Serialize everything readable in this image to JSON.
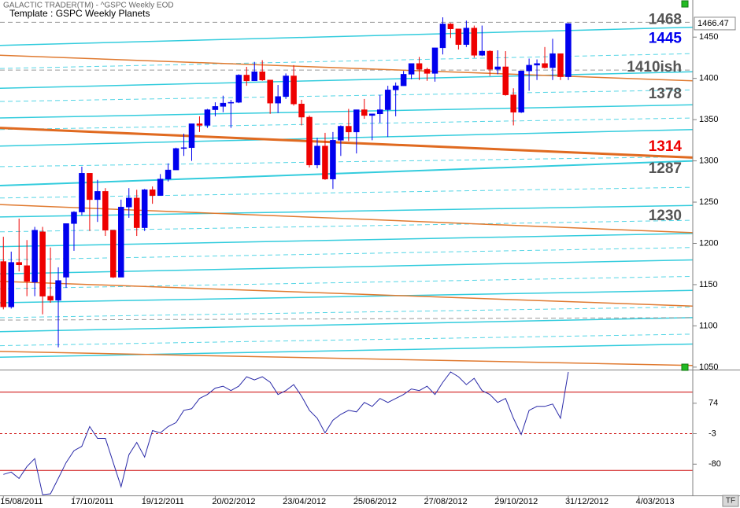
{
  "chart_data": [
    {
      "type": "candlestick",
      "title": "GALACTIC TRADER(TM) - ^GSPC Weekly EOD",
      "subtitle": "Template : GSPC Weekly Planets",
      "up_color": "#0000ee",
      "down_color": "#ee0000",
      "xlim": [
        "2011-08-12",
        "2013-04-21"
      ],
      "ylim": [
        1047,
        1495
      ],
      "yticks": [
        1050,
        1100,
        1150,
        1200,
        1250,
        1300,
        1350,
        1400,
        1450
      ],
      "x": [
        "2011-08-15",
        "2011-08-22",
        "2011-08-29",
        "2011-09-05",
        "2011-09-12",
        "2011-09-19",
        "2011-09-26",
        "2011-10-03",
        "2011-10-10",
        "2011-10-17",
        "2011-10-24",
        "2011-10-31",
        "2011-11-07",
        "2011-11-14",
        "2011-11-21",
        "2011-11-28",
        "2011-12-05",
        "2011-12-12",
        "2011-12-19",
        "2011-12-26",
        "2012-01-02",
        "2012-01-09",
        "2012-01-16",
        "2012-01-23",
        "2012-01-30",
        "2012-02-06",
        "2012-02-13",
        "2012-02-20",
        "2012-02-27",
        "2012-03-05",
        "2012-03-12",
        "2012-03-19",
        "2012-03-26",
        "2012-04-02",
        "2012-04-09",
        "2012-04-16",
        "2012-04-23",
        "2012-04-30",
        "2012-05-07",
        "2012-05-14",
        "2012-05-21",
        "2012-05-28",
        "2012-06-04",
        "2012-06-11",
        "2012-06-18",
        "2012-06-25",
        "2012-07-02",
        "2012-07-09",
        "2012-07-16",
        "2012-07-23",
        "2012-07-30",
        "2012-08-06",
        "2012-08-13",
        "2012-08-20",
        "2012-08-27",
        "2012-09-03",
        "2012-09-10",
        "2012-09-17",
        "2012-09-24",
        "2012-10-01",
        "2012-10-08",
        "2012-10-15",
        "2012-10-22",
        "2012-10-29",
        "2012-11-05",
        "2012-11-12",
        "2012-11-19",
        "2012-11-26",
        "2012-12-03",
        "2012-12-10",
        "2012-12-17",
        "2012-12-24",
        "2012-12-31"
      ],
      "open": [
        1178,
        1123,
        1177,
        1173,
        1153,
        1214,
        1136,
        1131,
        1159,
        1224,
        1238,
        1285,
        1253,
        1263,
        1216,
        1159,
        1244,
        1255,
        1219,
        1265,
        1258,
        1278,
        1289,
        1315,
        1316,
        1345,
        1343,
        1362,
        1366,
        1370,
        1371,
        1404,
        1397,
        1408,
        1398,
        1370,
        1378,
        1403,
        1369,
        1353,
        1295,
        1318,
        1278,
        1325,
        1342,
        1335,
        1362,
        1355,
        1357,
        1362,
        1386,
        1391,
        1405,
        1418,
        1411,
        1406,
        1437,
        1466,
        1460,
        1441,
        1461,
        1428,
        1433,
        1411,
        1414,
        1380,
        1359,
        1409,
        1416,
        1418,
        1413,
        1430,
        1402
      ],
      "high": [
        1208,
        1190,
        1230,
        1204,
        1220,
        1220,
        1195,
        1171,
        1224,
        1239,
        1293,
        1285,
        1277,
        1267,
        1216,
        1253,
        1267,
        1265,
        1266,
        1269,
        1284,
        1297,
        1316,
        1333,
        1345,
        1354,
        1363,
        1371,
        1379,
        1374,
        1405,
        1414,
        1420,
        1422,
        1398,
        1392,
        1406,
        1416,
        1374,
        1355,
        1328,
        1334,
        1335,
        1343,
        1363,
        1362,
        1375,
        1357,
        1380,
        1391,
        1395,
        1409,
        1418,
        1426,
        1413,
        1437,
        1474,
        1467,
        1460,
        1470,
        1464,
        1464,
        1434,
        1434,
        1433,
        1388,
        1409,
        1424,
        1423,
        1438,
        1448,
        1430,
        1467
      ],
      "low": [
        1120,
        1121,
        1166,
        1136,
        1136,
        1114,
        1128,
        1074,
        1146,
        1191,
        1234,
        1215,
        1226,
        1209,
        1158,
        1159,
        1231,
        1209,
        1215,
        1248,
        1258,
        1275,
        1289,
        1306,
        1300,
        1335,
        1340,
        1354,
        1359,
        1340,
        1370,
        1391,
        1397,
        1397,
        1357,
        1358,
        1375,
        1367,
        1343,
        1292,
        1291,
        1277,
        1266,
        1306,
        1324,
        1309,
        1351,
        1325,
        1346,
        1329,
        1354,
        1391,
        1399,
        1398,
        1397,
        1396,
        1429,
        1449,
        1435,
        1438,
        1425,
        1427,
        1403,
        1405,
        1379,
        1343,
        1358,
        1385,
        1398,
        1412,
        1398,
        1398,
        1398
      ],
      "close": [
        1123,
        1177,
        1174,
        1154,
        1216,
        1136,
        1131,
        1155,
        1224,
        1238,
        1285,
        1253,
        1263,
        1216,
        1159,
        1244,
        1255,
        1219,
        1265,
        1258,
        1278,
        1289,
        1315,
        1316,
        1345,
        1343,
        1362,
        1366,
        1370,
        1371,
        1404,
        1397,
        1408,
        1398,
        1370,
        1378,
        1403,
        1369,
        1353,
        1295,
        1318,
        1278,
        1325,
        1342,
        1335,
        1362,
        1355,
        1357,
        1362,
        1386,
        1391,
        1405,
        1418,
        1411,
        1406,
        1437,
        1466,
        1460,
        1441,
        1461,
        1428,
        1433,
        1411,
        1414,
        1380,
        1359,
        1409,
        1416,
        1418,
        1413,
        1430,
        1402,
        1466.47
      ],
      "planet_lines": [
        {
          "color": "#33ccdd",
          "dashed": false,
          "width": 1.5,
          "values": [
            1440,
            1462
          ]
        },
        {
          "color": "#33ccdd",
          "dashed": false,
          "width": 1.5,
          "values": [
            1388,
            1408
          ]
        },
        {
          "color": "#33ccdd",
          "dashed": false,
          "width": 1.5,
          "values": [
            1352,
            1368
          ]
        },
        {
          "color": "#33ccdd",
          "dashed": false,
          "width": 1.5,
          "values": [
            1318,
            1338
          ]
        },
        {
          "color": "#33ccdd",
          "dashed": false,
          "width": 2,
          "values": [
            1270,
            1300
          ]
        },
        {
          "color": "#33ccdd",
          "dashed": false,
          "width": 1.5,
          "values": [
            1232,
            1246
          ]
        },
        {
          "color": "#33ccdd",
          "dashed": false,
          "width": 1.5,
          "values": [
            1196,
            1212
          ]
        },
        {
          "color": "#33ccdd",
          "dashed": false,
          "width": 1.5,
          "values": [
            1163,
            1180
          ]
        },
        {
          "color": "#33ccdd",
          "dashed": false,
          "width": 1.5,
          "values": [
            1128,
            1143
          ]
        },
        {
          "color": "#33ccdd",
          "dashed": false,
          "width": 1.5,
          "values": [
            1093,
            1110
          ]
        },
        {
          "color": "#33ccdd",
          "dashed": false,
          "width": 1.5,
          "values": [
            1062,
            1078
          ]
        },
        {
          "color": "#55d5e5",
          "dashed": true,
          "width": 1,
          "values": [
            1412,
            1430
          ]
        },
        {
          "color": "#55d5e5",
          "dashed": true,
          "width": 1,
          "values": [
            1372,
            1386
          ]
        },
        {
          "color": "#55d5e5",
          "dashed": true,
          "width": 1,
          "values": [
            1338,
            1352
          ]
        },
        {
          "color": "#55d5e5",
          "dashed": true,
          "width": 1,
          "values": [
            1293,
            1305
          ]
        },
        {
          "color": "#55d5e5",
          "dashed": true,
          "width": 1,
          "values": [
            1255,
            1268
          ]
        },
        {
          "color": "#55d5e5",
          "dashed": true,
          "width": 1,
          "values": [
            1214,
            1228
          ]
        },
        {
          "color": "#55d5e5",
          "dashed": true,
          "width": 1,
          "values": [
            1180,
            1195
          ]
        },
        {
          "color": "#55d5e5",
          "dashed": true,
          "width": 1,
          "values": [
            1145,
            1160
          ]
        },
        {
          "color": "#55d5e5",
          "dashed": true,
          "width": 1,
          "values": [
            1110,
            1123
          ]
        },
        {
          "color": "#55d5e5",
          "dashed": true,
          "width": 1,
          "values": [
            1076,
            1090
          ]
        },
        {
          "color": "#999999",
          "dashed": true,
          "width": 1,
          "values": [
            1468,
            1468
          ]
        },
        {
          "color": "#999999",
          "dashed": true,
          "width": 1,
          "values": [
            1410,
            1410
          ]
        },
        {
          "color": "#999999",
          "dashed": true,
          "width": 1,
          "values": [
            1107,
            1110
          ]
        },
        {
          "color": "#e07a30",
          "dashed": false,
          "width": 1.5,
          "values": [
            1428,
            1397
          ]
        },
        {
          "color": "#e06a20",
          "dashed": false,
          "width": 3,
          "values": [
            1340,
            1304
          ]
        },
        {
          "color": "#e07a30",
          "dashed": false,
          "width": 1.5,
          "values": [
            1247,
            1213
          ]
        },
        {
          "color": "#e07a30",
          "dashed": false,
          "width": 1.5,
          "values": [
            1154,
            1124
          ]
        },
        {
          "color": "#e07a30",
          "dashed": false,
          "width": 1.5,
          "values": [
            1069,
            1052
          ]
        }
      ],
      "annotations": [
        {
          "label": "1468",
          "value": 1468,
          "color": "#555555"
        },
        {
          "label": "1445",
          "value": 1445,
          "color": "#0000ee"
        },
        {
          "label": "1410ish",
          "value": 1410,
          "color": "#555555"
        },
        {
          "label": "1378",
          "value": 1378,
          "color": "#555555"
        },
        {
          "label": "1314",
          "value": 1314,
          "color": "#ee0000"
        },
        {
          "label": "1287",
          "value": 1287,
          "color": "#555555"
        },
        {
          "label": "1230",
          "value": 1230,
          "color": "#555555"
        }
      ]
    },
    {
      "type": "line",
      "color": "#2a2aa8",
      "ylim": [
        -159,
        157
      ],
      "yticks": [
        74,
        -3,
        -80
      ],
      "levels": [
        {
          "value": 102,
          "color": "#cc0000",
          "dashed": false
        },
        {
          "value": -3,
          "color": "#cc0000",
          "dashed": true
        },
        {
          "value": -96,
          "color": "#cc0000",
          "dashed": false
        }
      ],
      "xticks": [
        {
          "value": "2011-08-15",
          "label": "15/08/2011"
        },
        {
          "value": "2011-10-17",
          "label": "17/10/2011"
        },
        {
          "value": "2011-12-19",
          "label": "19/12/2011"
        },
        {
          "value": "2012-02-20",
          "label": "20/02/2012"
        },
        {
          "value": "2012-04-23",
          "label": "23/04/2012"
        },
        {
          "value": "2012-06-25",
          "label": "25/06/2012"
        },
        {
          "value": "2012-08-27",
          "label": "27/08/2012"
        },
        {
          "value": "2012-10-29",
          "label": "29/10/2012"
        },
        {
          "value": "2012-12-31",
          "label": "31/12/2012"
        },
        {
          "value": "2013-03-04",
          "label": "4/03/2013"
        }
      ],
      "values": [
        -106,
        -100,
        -116,
        -86,
        -66,
        -157,
        -155,
        -116,
        -76,
        -46,
        -35,
        15,
        -15,
        -15,
        -76,
        -137,
        -56,
        -25,
        -62,
        5,
        -1,
        15,
        25,
        56,
        60,
        86,
        96,
        112,
        117,
        106,
        117,
        141,
        133,
        141,
        127,
        96,
        106,
        121,
        92,
        56,
        36,
        -1,
        31,
        46,
        56,
        52,
        76,
        66,
        86,
        76,
        86,
        96,
        110,
        106,
        117,
        96,
        127,
        153,
        141,
        121,
        137,
        106,
        96,
        76,
        86,
        36,
        -5,
        56,
        66,
        66,
        72,
        36,
        153
      ],
      "button": "TF"
    }
  ]
}
